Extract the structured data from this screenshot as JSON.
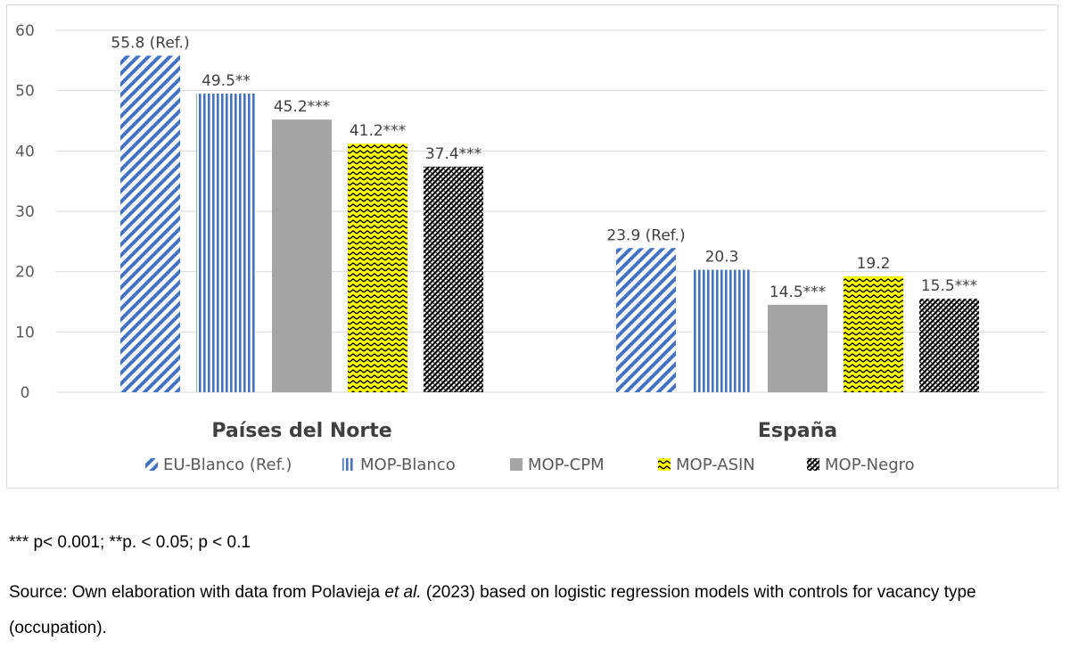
{
  "chart_data": {
    "type": "bar",
    "categories": [
      "Países del Norte",
      "España"
    ],
    "series": [
      {
        "name": "EU-Blanco (Ref.)",
        "values": [
          55.8,
          23.9
        ],
        "labels": [
          "55.8 (Ref.)",
          "23.9 (Ref.)"
        ],
        "color": "#4472c4",
        "pattern": "diagonal-stripes"
      },
      {
        "name": "MOP-Blanco",
        "values": [
          49.5,
          20.3
        ],
        "labels": [
          "49.5**",
          "20.3"
        ],
        "color": "#4472c4",
        "pattern": "vertical-stripes"
      },
      {
        "name": "MOP-CPM",
        "values": [
          45.2,
          14.5
        ],
        "labels": [
          "45.2***",
          "14.5***"
        ],
        "color": "#a5a5a5",
        "pattern": "solid"
      },
      {
        "name": "MOP-ASIN",
        "values": [
          41.2,
          19.2
        ],
        "labels": [
          "41.2***",
          "19.2"
        ],
        "color": "#ffff00",
        "pattern": "zigzag"
      },
      {
        "name": "MOP-Negro",
        "values": [
          37.4,
          15.5
        ],
        "labels": [
          "37.4***",
          "15.5***"
        ],
        "color": "#000000",
        "pattern": "checker-diagonal"
      }
    ],
    "ylim": [
      0,
      60
    ],
    "yticks": [
      0,
      10,
      20,
      30,
      40,
      50,
      60
    ],
    "grid": true,
    "legend": "bottom"
  },
  "notes": {
    "significance": "*** p< 0.001; **p. < 0.05; p < 0.1",
    "source_prefix": "Source: Own elaboration with data from Polavieja ",
    "source_italic": "et al.",
    "source_suffix": " (2023) based on logistic regression models with controls for vacancy type (occupation)."
  }
}
